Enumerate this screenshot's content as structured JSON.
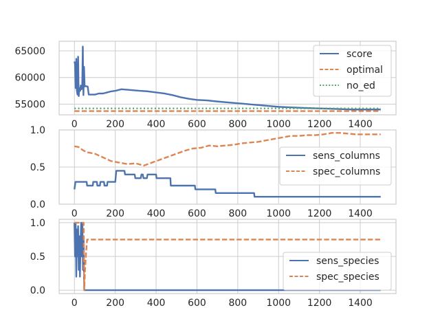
{
  "colors": {
    "score": "#4c72b0",
    "optimal": "#dd8452",
    "no_ed": "#55a868",
    "sens": "#4c72b0",
    "spec": "#dd8452",
    "grid": "#cccccc",
    "frame": "#cccccc"
  },
  "chart_data": [
    {
      "type": "line",
      "title": "",
      "xlabel": "",
      "ylabel": "",
      "xlim": [
        -75,
        1575
      ],
      "ylim": [
        53000,
        66800
      ],
      "xticks": [
        0,
        200,
        400,
        600,
        800,
        1000,
        1200,
        1400
      ],
      "yticks": [
        55000,
        60000,
        65000
      ],
      "ytick_labels": [
        "55000",
        "60000",
        "65000"
      ],
      "grid": true,
      "legend": "top-right",
      "series": [
        {
          "name": "score",
          "style": "solid",
          "points": [
            [
              0,
              63000
            ],
            [
              3,
              62500
            ],
            [
              6,
              58000
            ],
            [
              9,
              63500
            ],
            [
              12,
              57500
            ],
            [
              15,
              56800
            ],
            [
              18,
              63900
            ],
            [
              21,
              56500
            ],
            [
              24,
              58000
            ],
            [
              28,
              57500
            ],
            [
              31,
              58500
            ],
            [
              35,
              57800
            ],
            [
              38,
              58300
            ],
            [
              41,
              65800
            ],
            [
              44,
              56700
            ],
            [
              47,
              62000
            ],
            [
              50,
              58300
            ],
            [
              53,
              58400
            ],
            [
              65,
              58300
            ],
            [
              70,
              56800
            ],
            [
              100,
              56800
            ],
            [
              120,
              57000
            ],
            [
              140,
              57000
            ],
            [
              160,
              57200
            ],
            [
              180,
              57400
            ],
            [
              200,
              57500
            ],
            [
              230,
              57800
            ],
            [
              260,
              57700
            ],
            [
              290,
              57600
            ],
            [
              320,
              57500
            ],
            [
              360,
              57400
            ],
            [
              400,
              57200
            ],
            [
              440,
              57000
            ],
            [
              480,
              56700
            ],
            [
              520,
              56300
            ],
            [
              560,
              56000
            ],
            [
              600,
              55800
            ],
            [
              650,
              55700
            ],
            [
              700,
              55500
            ],
            [
              760,
              55300
            ],
            [
              820,
              55100
            ],
            [
              880,
              54900
            ],
            [
              940,
              54700
            ],
            [
              1000,
              54500
            ],
            [
              1060,
              54400
            ],
            [
              1120,
              54300
            ],
            [
              1200,
              54200
            ],
            [
              1280,
              54100
            ],
            [
              1360,
              54000
            ],
            [
              1440,
              54000
            ],
            [
              1500,
              54000
            ]
          ]
        },
        {
          "name": "optimal",
          "style": "dashed",
          "points": [
            [
              0,
              53700
            ],
            [
              1500,
              53700
            ]
          ]
        },
        {
          "name": "no_ed",
          "style": "dotted",
          "points": [
            [
              0,
              54200
            ],
            [
              1500,
              54200
            ]
          ]
        }
      ]
    },
    {
      "type": "line",
      "title": "",
      "xlabel": "",
      "ylabel": "",
      "xlim": [
        -75,
        1575
      ],
      "ylim": [
        0,
        1.0
      ],
      "xticks": [
        0,
        200,
        400,
        600,
        800,
        1000,
        1200,
        1400
      ],
      "yticks": [
        0.0,
        0.5,
        1.0
      ],
      "ytick_labels": [
        "0.0",
        "0.5",
        "1.0"
      ],
      "grid": true,
      "legend": "center-right",
      "series": [
        {
          "name": "sens_columns",
          "style": "solid",
          "steps": true,
          "points": [
            [
              0,
              0.2
            ],
            [
              5,
              0.3
            ],
            [
              60,
              0.3
            ],
            [
              62,
              0.25
            ],
            [
              90,
              0.25
            ],
            [
              92,
              0.3
            ],
            [
              110,
              0.3
            ],
            [
              112,
              0.25
            ],
            [
              125,
              0.25
            ],
            [
              127,
              0.3
            ],
            [
              145,
              0.3
            ],
            [
              147,
              0.25
            ],
            [
              160,
              0.25
            ],
            [
              162,
              0.3
            ],
            [
              200,
              0.3
            ],
            [
              205,
              0.45
            ],
            [
              245,
              0.45
            ],
            [
              248,
              0.4
            ],
            [
              295,
              0.4
            ],
            [
              298,
              0.35
            ],
            [
              325,
              0.35
            ],
            [
              328,
              0.4
            ],
            [
              335,
              0.4
            ],
            [
              338,
              0.35
            ],
            [
              355,
              0.35
            ],
            [
              358,
              0.4
            ],
            [
              400,
              0.4
            ],
            [
              402,
              0.35
            ],
            [
              470,
              0.35
            ],
            [
              472,
              0.25
            ],
            [
              590,
              0.25
            ],
            [
              592,
              0.2
            ],
            [
              690,
              0.2
            ],
            [
              692,
              0.15
            ],
            [
              880,
              0.15
            ],
            [
              882,
              0.1
            ],
            [
              1500,
              0.1
            ]
          ]
        },
        {
          "name": "spec_columns",
          "style": "dashed",
          "points": [
            [
              0,
              0.78
            ],
            [
              20,
              0.77
            ],
            [
              40,
              0.73
            ],
            [
              60,
              0.7
            ],
            [
              100,
              0.68
            ],
            [
              140,
              0.63
            ],
            [
              180,
              0.58
            ],
            [
              220,
              0.56
            ],
            [
              260,
              0.54
            ],
            [
              300,
              0.55
            ],
            [
              340,
              0.52
            ],
            [
              380,
              0.56
            ],
            [
              420,
              0.6
            ],
            [
              460,
              0.64
            ],
            [
              500,
              0.68
            ],
            [
              540,
              0.72
            ],
            [
              580,
              0.75
            ],
            [
              620,
              0.76
            ],
            [
              660,
              0.79
            ],
            [
              700,
              0.78
            ],
            [
              740,
              0.79
            ],
            [
              780,
              0.8
            ],
            [
              820,
              0.82
            ],
            [
              860,
              0.83
            ],
            [
              900,
              0.84
            ],
            [
              940,
              0.86
            ],
            [
              980,
              0.88
            ],
            [
              1020,
              0.9
            ],
            [
              1060,
              0.92
            ],
            [
              1100,
              0.92
            ],
            [
              1140,
              0.93
            ],
            [
              1180,
              0.93
            ],
            [
              1220,
              0.94
            ],
            [
              1260,
              0.96
            ],
            [
              1300,
              0.96
            ],
            [
              1340,
              0.95
            ],
            [
              1380,
              0.94
            ],
            [
              1420,
              0.94
            ],
            [
              1460,
              0.94
            ],
            [
              1500,
              0.94
            ]
          ]
        }
      ]
    },
    {
      "type": "line",
      "title": "",
      "xlabel": "",
      "ylabel": "",
      "xlim": [
        -75,
        1575
      ],
      "ylim": [
        -0.05,
        1.05
      ],
      "xticks": [
        0,
        200,
        400,
        600,
        800,
        1000,
        1200,
        1400
      ],
      "yticks": [
        0.0,
        0.5,
        1.0
      ],
      "ytick_labels": [
        "0.0",
        "0.5",
        "1.0"
      ],
      "grid": true,
      "legend": "center-right",
      "series": [
        {
          "name": "sens_species",
          "style": "solid",
          "points": [
            [
              0,
              1.0
            ],
            [
              3,
              0.5
            ],
            [
              6,
              1.0
            ],
            [
              9,
              0.2
            ],
            [
              12,
              0.9
            ],
            [
              15,
              0.5
            ],
            [
              18,
              0.95
            ],
            [
              21,
              0.3
            ],
            [
              24,
              0.8
            ],
            [
              27,
              0.2
            ],
            [
              30,
              0.7
            ],
            [
              33,
              1.0
            ],
            [
              36,
              0.5
            ],
            [
              39,
              1.0
            ],
            [
              42,
              0.3
            ],
            [
              45,
              0.8
            ],
            [
              48,
              0.0
            ],
            [
              1500,
              0.0
            ]
          ]
        },
        {
          "name": "spec_species",
          "style": "dashed",
          "points": [
            [
              0,
              1.0
            ],
            [
              45,
              1.0
            ],
            [
              48,
              0.0
            ],
            [
              52,
              0.3
            ],
            [
              58,
              0.6
            ],
            [
              62,
              0.75
            ],
            [
              1500,
              0.75
            ]
          ]
        }
      ]
    }
  ]
}
